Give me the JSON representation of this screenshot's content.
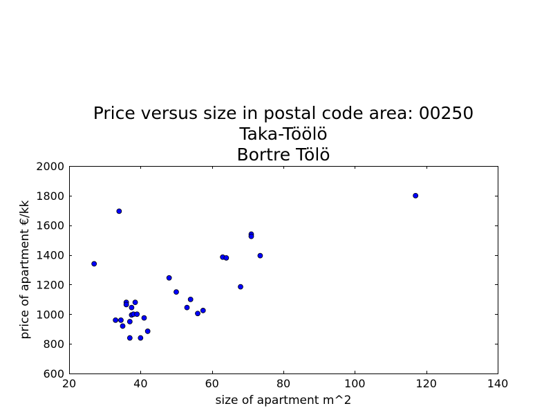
{
  "chart_data": {
    "type": "scatter",
    "title_lines": [
      "Price versus size in postal code area: 00250",
      "Taka-Töölö",
      "Bortre Tölö"
    ],
    "xlabel": "size of apartment m^2",
    "ylabel": "price of apartment €/kk",
    "xlim": [
      20,
      140
    ],
    "ylim": [
      600,
      2000
    ],
    "xticks": [
      20,
      40,
      60,
      80,
      100,
      120,
      140
    ],
    "yticks": [
      600,
      800,
      1000,
      1200,
      1400,
      1600,
      1800,
      2000
    ],
    "grid": false,
    "marker_color": "#0000ff",
    "series": [
      {
        "points": [
          [
            27,
            1340
          ],
          [
            34,
            1695
          ],
          [
            33,
            960
          ],
          [
            34.5,
            960
          ],
          [
            35,
            920
          ],
          [
            36,
            1080
          ],
          [
            36,
            1065
          ],
          [
            37,
            950
          ],
          [
            37,
            840
          ],
          [
            37.5,
            1045
          ],
          [
            37.5,
            995
          ],
          [
            38,
            1000
          ],
          [
            38.5,
            1080
          ],
          [
            39,
            1000
          ],
          [
            40,
            840
          ],
          [
            41,
            975
          ],
          [
            42,
            885
          ],
          [
            48,
            1245
          ],
          [
            50,
            1150
          ],
          [
            53,
            1045
          ],
          [
            54,
            1100
          ],
          [
            56,
            1005
          ],
          [
            57.5,
            1025
          ],
          [
            63,
            1385
          ],
          [
            64,
            1380
          ],
          [
            68,
            1185
          ],
          [
            71,
            1540
          ],
          [
            71,
            1525
          ],
          [
            73.5,
            1395
          ],
          [
            117,
            1800
          ]
        ]
      }
    ]
  }
}
